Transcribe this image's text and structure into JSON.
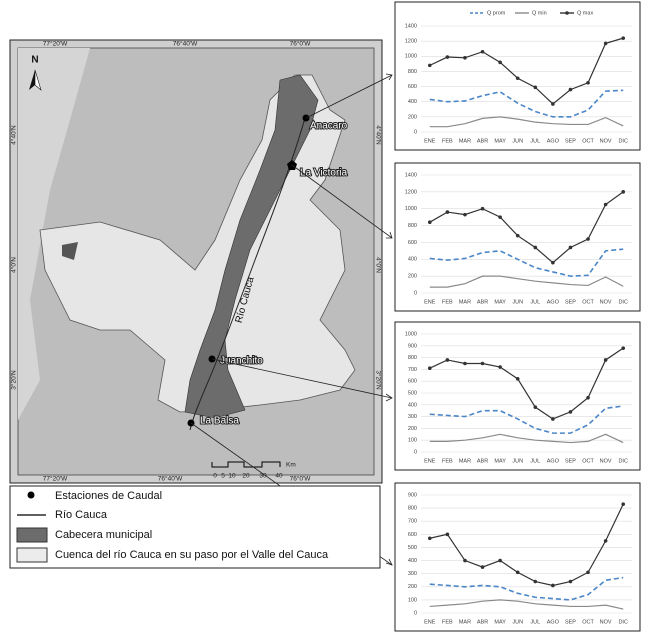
{
  "map": {
    "coords_top": [
      "77°20'W",
      "76°40'W",
      "76°0'W"
    ],
    "coords_bottom": [
      "77°20'W",
      "76°40'W",
      "76°0'W"
    ],
    "coords_left": [
      "4°40'N",
      "4°0'N",
      "3°20'N"
    ],
    "coords_right": [
      "4°40'N",
      "4°0'N",
      "3°20'N"
    ],
    "north": "N",
    "stations": [
      "Anacaro",
      "La Victoria",
      "Juanchito",
      "La Balsa"
    ],
    "river": "Río Cauca",
    "scale": [
      "0",
      "5",
      "10",
      "20",
      "30",
      "40"
    ],
    "scale_unit": "Km"
  },
  "legend": [
    "Estaciones de Caudal",
    "Río Cauca",
    "Cabecera municipal",
    "Cuenca del río Cauca en su paso por el Valle del Cauca"
  ],
  "chart_data": [
    {
      "type": "line",
      "categories": [
        "ENE",
        "FEB",
        "MAR",
        "ABR",
        "MAY",
        "JUN",
        "JUL",
        "AGO",
        "SEP",
        "OCT",
        "NOV",
        "DIC"
      ],
      "ylim": [
        0,
        1400
      ],
      "yticks": [
        0,
        200,
        400,
        600,
        800,
        1000,
        1200,
        1400
      ],
      "grid": true,
      "series": [
        {
          "name": "Q prom",
          "color": "#4a86c8",
          "dash": true,
          "markers": false,
          "values": [
            430,
            400,
            410,
            480,
            530,
            380,
            270,
            200,
            200,
            290,
            540,
            550
          ]
        },
        {
          "name": "Q min",
          "color": "#8a8a8a",
          "dash": false,
          "markers": false,
          "values": [
            70,
            70,
            110,
            180,
            200,
            170,
            130,
            110,
            100,
            100,
            190,
            80
          ]
        },
        {
          "name": "Q max",
          "color": "#333333",
          "dash": false,
          "markers": true,
          "values": [
            880,
            990,
            980,
            1060,
            920,
            710,
            590,
            370,
            560,
            650,
            1170,
            1240
          ]
        }
      ]
    },
    {
      "type": "line",
      "categories": [
        "ENE",
        "FEB",
        "MAR",
        "ABR",
        "MAY",
        "JUN",
        "JUL",
        "AGO",
        "SEP",
        "OCT",
        "NOV",
        "DIC"
      ],
      "ylim": [
        0,
        1400
      ],
      "yticks": [
        0,
        200,
        400,
        600,
        800,
        1000,
        1200,
        1400
      ],
      "grid": true,
      "series": [
        {
          "color": "#4a86c8",
          "dash": true,
          "markers": false,
          "values": [
            410,
            390,
            410,
            480,
            500,
            400,
            300,
            250,
            200,
            210,
            500,
            520
          ]
        },
        {
          "color": "#8a8a8a",
          "dash": false,
          "markers": false,
          "values": [
            70,
            70,
            110,
            200,
            200,
            170,
            140,
            120,
            100,
            90,
            190,
            80
          ]
        },
        {
          "color": "#333333",
          "dash": false,
          "markers": true,
          "values": [
            840,
            960,
            930,
            1000,
            900,
            680,
            540,
            360,
            540,
            640,
            1050,
            1200
          ]
        }
      ]
    },
    {
      "type": "line",
      "categories": [
        "ENE",
        "FEB",
        "MAR",
        "ABR",
        "MAY",
        "JUN",
        "JUL",
        "AGO",
        "SEP",
        "OCT",
        "NOV",
        "DIC"
      ],
      "ylim": [
        0,
        1000
      ],
      "yticks": [
        0,
        100,
        200,
        300,
        400,
        500,
        600,
        700,
        800,
        900,
        1000
      ],
      "grid": true,
      "series": [
        {
          "color": "#4a86c8",
          "dash": true,
          "markers": false,
          "values": [
            320,
            310,
            300,
            350,
            350,
            280,
            200,
            160,
            160,
            230,
            370,
            390
          ]
        },
        {
          "color": "#8a8a8a",
          "dash": false,
          "markers": false,
          "values": [
            90,
            90,
            100,
            120,
            150,
            120,
            100,
            90,
            80,
            90,
            150,
            80
          ]
        },
        {
          "color": "#333333",
          "dash": false,
          "markers": true,
          "values": [
            710,
            780,
            750,
            750,
            720,
            620,
            380,
            280,
            340,
            460,
            780,
            880
          ]
        }
      ]
    },
    {
      "type": "line",
      "categories": [
        "ENE",
        "FEB",
        "MAR",
        "ABR",
        "MAY",
        "JUN",
        "JUL",
        "AGO",
        "SEP",
        "OCT",
        "NOV",
        "DIC"
      ],
      "ylim": [
        0,
        900
      ],
      "yticks": [
        0,
        100,
        200,
        300,
        400,
        500,
        600,
        700,
        800,
        900
      ],
      "grid": true,
      "series": [
        {
          "color": "#4a86c8",
          "dash": true,
          "markers": false,
          "values": [
            220,
            210,
            200,
            210,
            200,
            150,
            120,
            110,
            100,
            140,
            250,
            270
          ]
        },
        {
          "color": "#8a8a8a",
          "dash": false,
          "markers": false,
          "values": [
            50,
            60,
            70,
            90,
            100,
            90,
            70,
            60,
            50,
            50,
            60,
            30
          ]
        },
        {
          "color": "#333333",
          "dash": false,
          "markers": true,
          "values": [
            570,
            600,
            400,
            350,
            400,
            310,
            240,
            210,
            240,
            310,
            550,
            830
          ]
        }
      ]
    }
  ]
}
